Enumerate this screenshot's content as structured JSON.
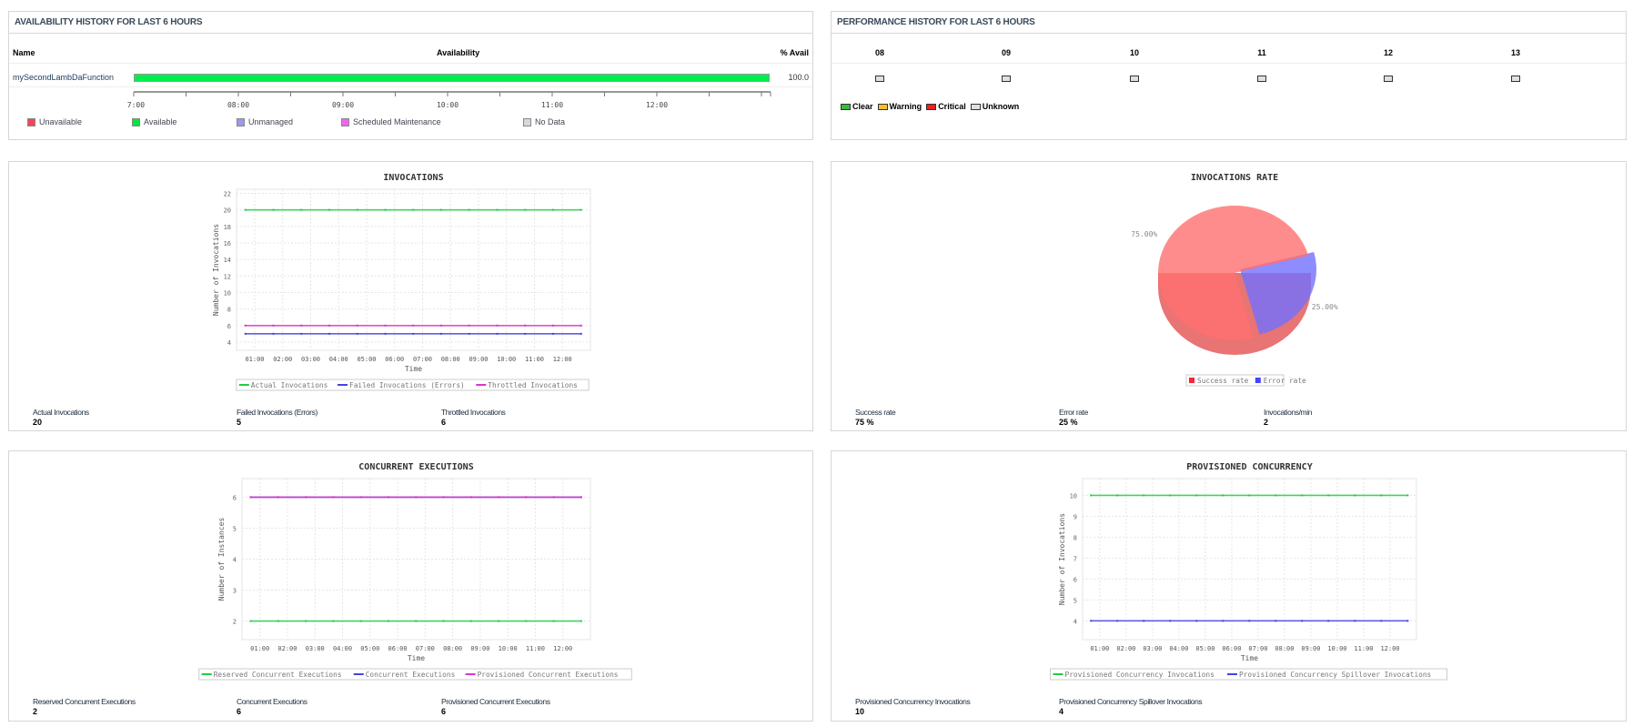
{
  "availability": {
    "title": "AVAILABILITY HISTORY FOR LAST 6 HOURS",
    "columns": {
      "name": "Name",
      "availability": "Availability",
      "pct": "% Avail"
    },
    "row": {
      "name": "mySecondLambDaFunction",
      "pct": "100.0",
      "available_percent": 100,
      "bar_color": "#00ee4c"
    },
    "axis_labels": [
      "07:00",
      "08:00",
      "09:00",
      "10:00",
      "11:00",
      "12:00"
    ],
    "legend": [
      {
        "label": "Unavailable",
        "color": "#f5455a"
      },
      {
        "label": "Available",
        "color": "#00e640"
      },
      {
        "label": "Unmanaged",
        "color": "#9a9aee"
      },
      {
        "label": "Scheduled Maintenance",
        "color": "#ee66ee"
      },
      {
        "label": "No Data",
        "color": "#d8d8d8"
      }
    ]
  },
  "performance": {
    "title": "PERFORMANCE HISTORY FOR LAST 6 HOURS",
    "hours": [
      "08",
      "09",
      "10",
      "11",
      "12",
      "13"
    ],
    "status": [
      "Unknown",
      "Unknown",
      "Unknown",
      "Unknown",
      "Unknown",
      "Unknown"
    ],
    "legend": [
      {
        "label": "Clear",
        "color": "#3cb83c"
      },
      {
        "label": "Warning",
        "color": "#f5c02a"
      },
      {
        "label": "Critical",
        "color": "#e8221c"
      },
      {
        "label": "Unknown",
        "color": "#e0e0e0"
      }
    ]
  },
  "metrics": {
    "invocations": [
      {
        "label": "Actual Invocations",
        "value": "20"
      },
      {
        "label": "Failed Invocations (Errors)",
        "value": "5"
      },
      {
        "label": "Throttled Invocations",
        "value": "6"
      }
    ],
    "rate": [
      {
        "label": "Success rate",
        "value": "75 %"
      },
      {
        "label": "Error rate",
        "value": "25 %"
      },
      {
        "label": "Invocations/min",
        "value": "2"
      }
    ],
    "concurrent": [
      {
        "label": "Reserved Concurrent Executions",
        "value": "2"
      },
      {
        "label": "Concurrent Executions",
        "value": "6"
      },
      {
        "label": "Provisioned Concurrent Executions",
        "value": "6"
      }
    ],
    "provisioned": [
      {
        "label": "Provisioned Concurrency Invocations",
        "value": "10"
      },
      {
        "label": "Provisioned Concurrency Spillover Invocations",
        "value": "4"
      }
    ]
  },
  "chart_data": [
    {
      "id": "invocations",
      "type": "line",
      "title": "INVOCATIONS",
      "xlabel": "Time",
      "ylabel": "Number of Invocations",
      "x_ticks": [
        "01:00",
        "02:00",
        "03:00",
        "04:00",
        "05:00",
        "06:00",
        "07:00",
        "08:00",
        "09:00",
        "10:00",
        "11:00",
        "12:00"
      ],
      "x": [
        "00:40",
        "01:40",
        "02:40",
        "03:40",
        "04:40",
        "05:40",
        "06:40",
        "07:40",
        "08:40",
        "09:40",
        "10:40",
        "11:40",
        "12:40"
      ],
      "ylim": [
        3,
        22.5
      ],
      "y_ticks": [
        4,
        6,
        8,
        10,
        12,
        14,
        16,
        18,
        20,
        22
      ],
      "grid": true,
      "legend": "bottom",
      "series": [
        {
          "name": "Actual Invocations",
          "color": "#22cc44",
          "values": [
            20,
            20,
            20,
            20,
            20,
            20,
            20,
            20,
            20,
            20,
            20,
            20,
            20
          ]
        },
        {
          "name": "Failed Invocations (Errors)",
          "color": "#4444dd",
          "values": [
            5,
            5,
            5,
            5,
            5,
            5,
            5,
            5,
            5,
            5,
            5,
            5,
            5
          ]
        },
        {
          "name": "Throttled Invocations",
          "color": "#dd33cc",
          "values": [
            6,
            6,
            6,
            6,
            6,
            6,
            6,
            6,
            6,
            6,
            6,
            6,
            6
          ]
        }
      ]
    },
    {
      "id": "rate",
      "type": "pie",
      "title": "INVOCATIONS RATE",
      "legend": "bottom",
      "slices": [
        {
          "name": "Success rate",
          "value": 75,
          "label": "75.00%",
          "color": "#ff6f6f"
        },
        {
          "name": "Error rate",
          "value": 25,
          "label": "25.00%",
          "color": "#7070ff"
        }
      ]
    },
    {
      "id": "concurrent",
      "type": "line",
      "title": "CONCURRENT EXECUTIONS",
      "xlabel": "Time",
      "ylabel": "Number of Instances",
      "x_ticks": [
        "01:00",
        "02:00",
        "03:00",
        "04:00",
        "05:00",
        "06:00",
        "07:00",
        "08:00",
        "09:00",
        "10:00",
        "11:00",
        "12:00"
      ],
      "x": [
        "00:40",
        "01:40",
        "02:40",
        "03:40",
        "04:40",
        "05:40",
        "06:40",
        "07:40",
        "08:40",
        "09:40",
        "10:40",
        "11:40",
        "12:40"
      ],
      "ylim": [
        1.4,
        6.6
      ],
      "y_ticks": [
        2,
        3,
        4,
        5,
        6
      ],
      "grid": true,
      "legend": "bottom",
      "series": [
        {
          "name": "Reserved Concurrent Executions",
          "color": "#22cc44",
          "values": [
            2,
            2,
            2,
            2,
            2,
            2,
            2,
            2,
            2,
            2,
            2,
            2,
            2
          ]
        },
        {
          "name": "Concurrent Executions",
          "color": "#4444dd",
          "values": [
            6,
            6,
            6,
            6,
            6,
            6,
            6,
            6,
            6,
            6,
            6,
            6,
            6
          ]
        },
        {
          "name": "Provisioned Concurrent Executions",
          "color": "#dd33cc",
          "values": [
            6,
            6,
            6,
            6,
            6,
            6,
            6,
            6,
            6,
            6,
            6,
            6,
            6
          ]
        }
      ]
    },
    {
      "id": "provisioned",
      "type": "line",
      "title": "PROVISIONED CONCURRENCY",
      "xlabel": "Time",
      "ylabel": "Number of Invocations",
      "x_ticks": [
        "01:00",
        "02:00",
        "03:00",
        "04:00",
        "05:00",
        "06:00",
        "07:00",
        "08:00",
        "09:00",
        "10:00",
        "11:00",
        "12:00"
      ],
      "x": [
        "00:40",
        "01:40",
        "02:40",
        "03:40",
        "04:40",
        "05:40",
        "06:40",
        "07:40",
        "08:40",
        "09:40",
        "10:40",
        "11:40",
        "12:40"
      ],
      "ylim": [
        3.1,
        10.8
      ],
      "y_ticks": [
        4,
        5,
        6,
        7,
        8,
        9,
        10
      ],
      "grid": true,
      "legend": "bottom",
      "series": [
        {
          "name": "Provisioned Concurrency Invocations",
          "color": "#22cc44",
          "values": [
            10,
            10,
            10,
            10,
            10,
            10,
            10,
            10,
            10,
            10,
            10,
            10,
            10
          ]
        },
        {
          "name": "Provisioned Concurrency Spillover Invocations",
          "color": "#4444dd",
          "values": [
            4,
            4,
            4,
            4,
            4,
            4,
            4,
            4,
            4,
            4,
            4,
            4,
            4
          ]
        }
      ]
    }
  ]
}
